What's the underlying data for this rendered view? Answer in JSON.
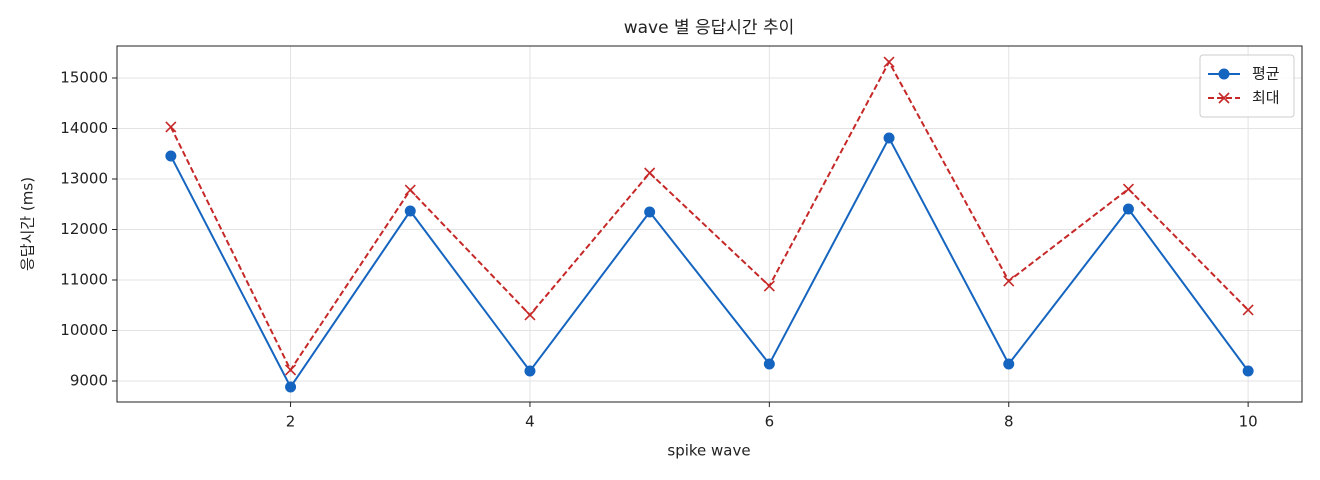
{
  "chart_data": {
    "type": "line",
    "title": "wave 별 응답시간 추이",
    "x_label": "spike wave",
    "y_label": "응답시간 (ms)",
    "x": [
      1,
      2,
      3,
      4,
      5,
      6,
      7,
      8,
      9,
      10
    ],
    "series": [
      {
        "name": "평균",
        "color": "#1565c0",
        "marker": "o",
        "linestyle": "solid",
        "values": [
          13455,
          8881,
          12366,
          9198,
          12347,
          9337,
          13812,
          9337,
          12406,
          9198
        ]
      },
      {
        "name": "최대",
        "color": "#c62828",
        "marker": "x",
        "linestyle": "dashed",
        "values": [
          14030,
          9218,
          12782,
          10307,
          13119,
          10881,
          15317,
          10980,
          12802,
          10406
        ]
      }
    ],
    "xlim": [
      0.55,
      10.45
    ],
    "xticks": [
      2,
      4,
      6,
      8,
      10
    ],
    "ylim": [
      8584,
      15634
    ],
    "yticks": [
      9000,
      10000,
      11000,
      12000,
      13000,
      14000,
      15000
    ],
    "grid": true,
    "legend": "upper right"
  }
}
